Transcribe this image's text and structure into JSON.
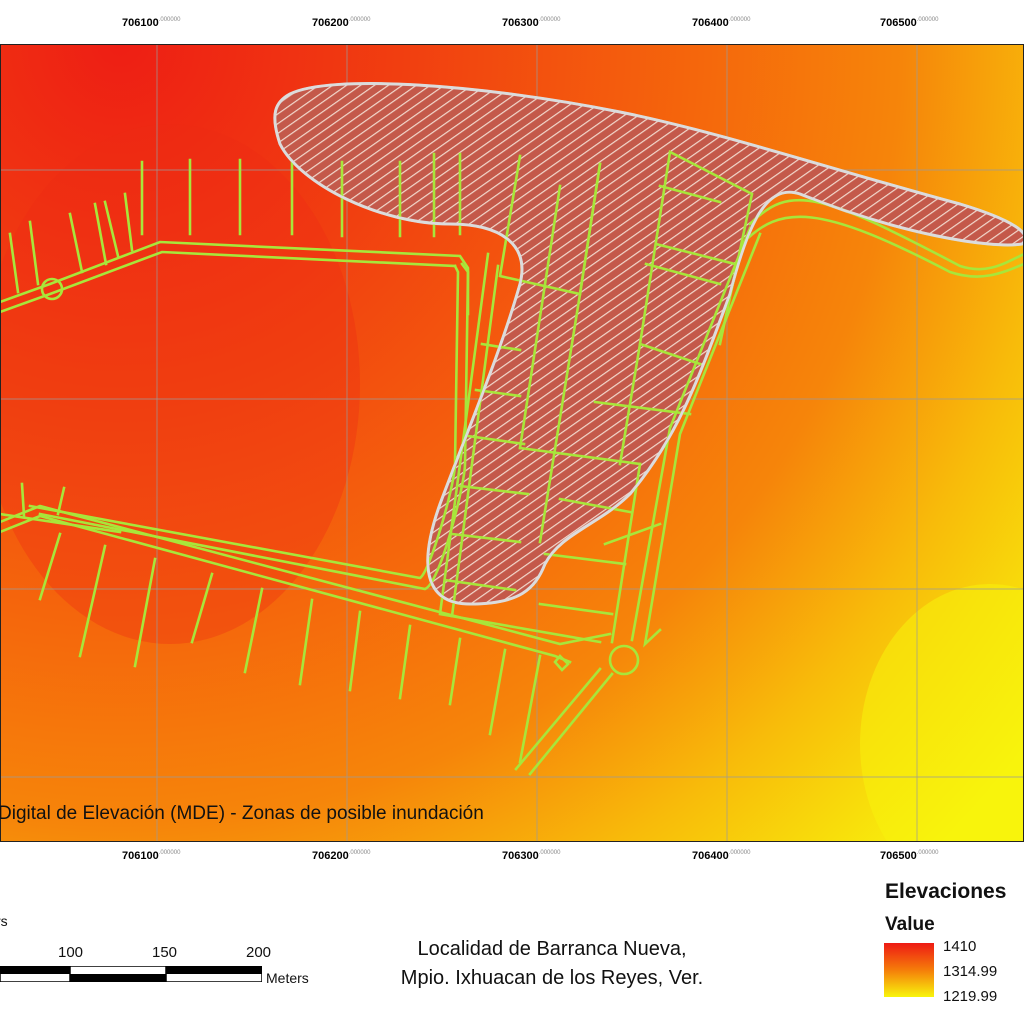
{
  "map": {
    "title": "Digital de Elevación (MDE) - Zonas de posible inundación",
    "grid_x_labels": [
      {
        "main": "706100",
        "dec": ".000000"
      },
      {
        "main": "706200",
        "dec": ".000000"
      },
      {
        "main": "706300",
        "dec": ".000000"
      },
      {
        "main": "706400",
        "dec": ".000000"
      },
      {
        "main": "706500",
        "dec": ".000000"
      }
    ],
    "colors": {
      "elevation_high": "#ee1a14",
      "elevation_mid": "#f57d0a",
      "elevation_low": "#f8f50c",
      "streets": "#a8e63a",
      "flood_zone_outline": "#d8d8d8",
      "grid": "#9a9a9a"
    },
    "layers": [
      "elevation-raster",
      "street-network",
      "flood-zone-hatch",
      "grid-lines"
    ]
  },
  "scale": {
    "units_top": "rs",
    "labels": [
      "100",
      "150",
      "200"
    ],
    "units": "Meters"
  },
  "location": {
    "line1": "Localidad de Barranca Nueva,",
    "line2": "Mpio. Ixhuacan de los Reyes, Ver."
  },
  "legend": {
    "title": "Elevaciones",
    "subtitle": "Value",
    "max": "1410",
    "mid": "1314.99",
    "min": "1219.99"
  }
}
